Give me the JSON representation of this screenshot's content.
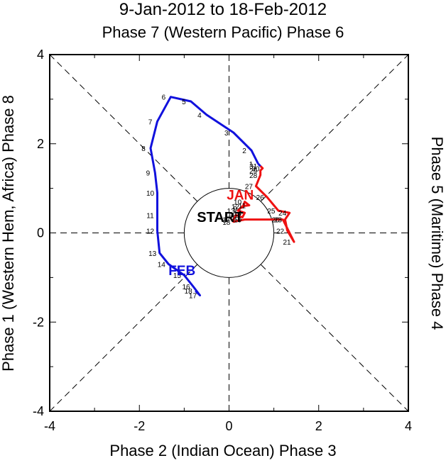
{
  "chart_data": {
    "type": "line",
    "title": "9-Jan-2012 to 18-Feb-2012",
    "top_label": "Phase 7 (Western Pacific) Phase 6",
    "bottom_label": "Phase 2 (Indian Ocean) Phase 3",
    "left_label": "Phase 1 (Western Hem, Africa) Phase 8",
    "right_label": "Phase 5 (Maritime) Phase 4",
    "xlim": [
      -4,
      4
    ],
    "ylim": [
      -4,
      4
    ],
    "x_ticks": [
      "-4",
      "-2",
      "0",
      "2",
      "4"
    ],
    "y_ticks": [
      "-4",
      "-2",
      "0",
      "2",
      "4"
    ],
    "start_label": "START",
    "series": [
      {
        "name": "JAN",
        "color": "#ee1111",
        "points": [
          {
            "d": "9",
            "x": 0.3,
            "y": 0.55
          },
          {
            "d": "10",
            "x": 0.35,
            "y": 0.7
          },
          {
            "d": "11",
            "x": 0.45,
            "y": 0.62
          },
          {
            "d": "12",
            "x": 0.3,
            "y": 0.6
          },
          {
            "d": "13",
            "x": 0.2,
            "y": 0.5
          },
          {
            "d": "14",
            "x": 0.35,
            "y": 0.45
          },
          {
            "d": "15",
            "x": 0.3,
            "y": 0.35
          },
          {
            "d": "16",
            "x": 0.15,
            "y": 0.4
          },
          {
            "d": "17",
            "x": 0.1,
            "y": 0.3
          },
          {
            "d": "18",
            "x": 0.1,
            "y": 0.25
          },
          {
            "d": "19",
            "x": 0.35,
            "y": 0.3
          },
          {
            "d": "20",
            "x": 1.2,
            "y": 0.3
          },
          {
            "d": "21",
            "x": 1.45,
            "y": -0.2
          },
          {
            "d": "22",
            "x": 1.3,
            "y": 0.05
          },
          {
            "d": "23",
            "x": 1.25,
            "y": 0.3
          },
          {
            "d": "24",
            "x": 1.35,
            "y": 0.45
          },
          {
            "d": "25",
            "x": 1.1,
            "y": 0.5
          },
          {
            "d": "26",
            "x": 0.85,
            "y": 0.8
          },
          {
            "d": "27",
            "x": 0.6,
            "y": 1.05
          },
          {
            "d": "28",
            "x": 0.7,
            "y": 1.3
          },
          {
            "d": "29",
            "x": 0.7,
            "y": 1.4
          },
          {
            "d": "30",
            "x": 0.75,
            "y": 1.45
          },
          {
            "d": "31",
            "x": 0.7,
            "y": 1.5
          }
        ]
      },
      {
        "name": "FEB",
        "color": "#1111dd",
        "points": [
          {
            "d": "1",
            "x": 0.65,
            "y": 1.55
          },
          {
            "d": "2",
            "x": 0.5,
            "y": 1.85
          },
          {
            "d": "3",
            "x": 0.1,
            "y": 2.25
          },
          {
            "d": "4",
            "x": -0.5,
            "y": 2.65
          },
          {
            "d": "5",
            "x": -0.85,
            "y": 2.95
          },
          {
            "d": "6",
            "x": -1.3,
            "y": 3.05
          },
          {
            "d": "7",
            "x": -1.6,
            "y": 2.5
          },
          {
            "d": "8",
            "x": -1.75,
            "y": 1.9
          },
          {
            "d": "9",
            "x": -1.65,
            "y": 1.35
          },
          {
            "d": "10",
            "x": -1.6,
            "y": 0.9
          },
          {
            "d": "11",
            "x": -1.6,
            "y": 0.4
          },
          {
            "d": "12",
            "x": -1.6,
            "y": 0.05
          },
          {
            "d": "13",
            "x": -1.55,
            "y": -0.45
          },
          {
            "d": "14",
            "x": -1.35,
            "y": -0.7
          },
          {
            "d": "15",
            "x": -1.0,
            "y": -0.95
          },
          {
            "d": "16",
            "x": -0.8,
            "y": -1.2
          },
          {
            "d": "17",
            "x": -0.65,
            "y": -1.4
          },
          {
            "d": "18",
            "x": -0.75,
            "y": -1.3
          }
        ]
      }
    ]
  }
}
